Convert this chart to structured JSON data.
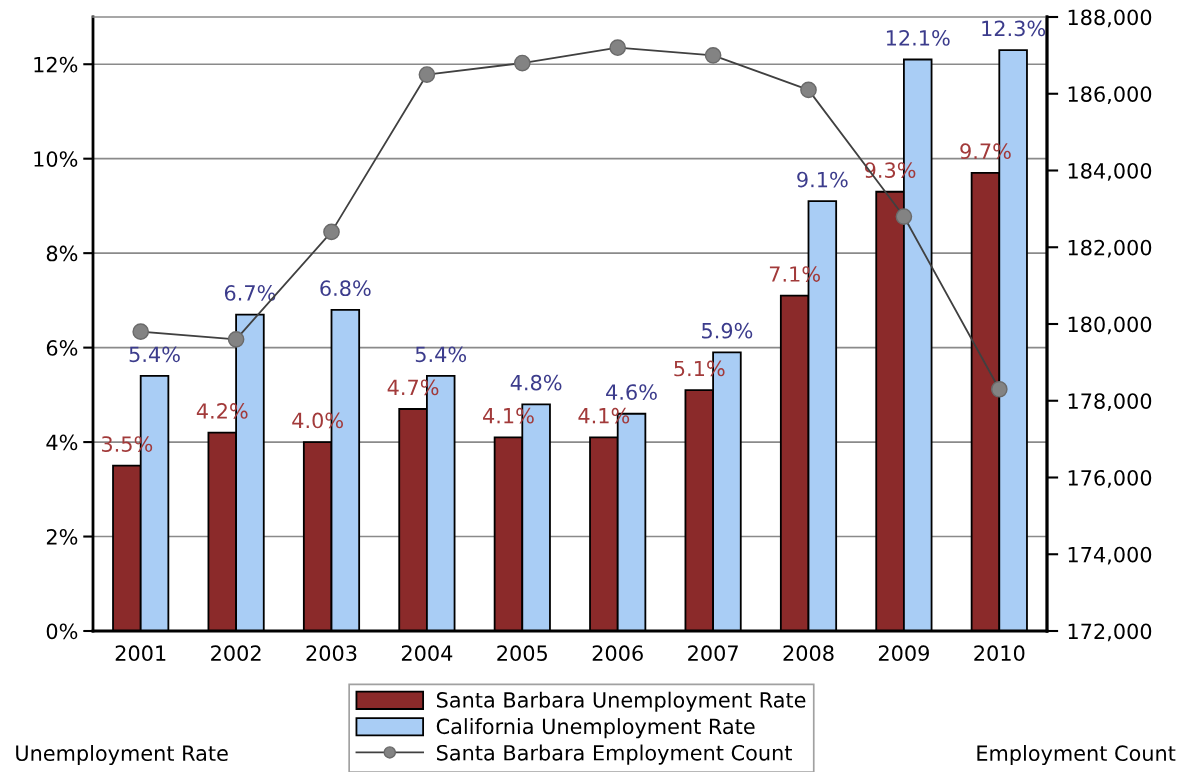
{
  "chart_data": {
    "type": "bar",
    "categories": [
      "2001",
      "2002",
      "2003",
      "2004",
      "2005",
      "2006",
      "2007",
      "2008",
      "2009",
      "2010"
    ],
    "series": [
      {
        "name": "Santa Barbara Unemployment Rate",
        "color": "#8b2a2a",
        "values": [
          3.5,
          4.2,
          4.0,
          4.7,
          4.1,
          4.1,
          5.1,
          7.1,
          9.3,
          9.7
        ],
        "value_labels": [
          "3.5%",
          "4.2%",
          "4.0%",
          "4.7%",
          "4.1%",
          "4.1%",
          "5.1%",
          "7.1%",
          "9.3%",
          "9.7%"
        ]
      },
      {
        "name": "California Unemployment Rate",
        "color": "#a9cdf5",
        "values": [
          5.4,
          6.7,
          6.8,
          5.4,
          4.8,
          4.6,
          5.9,
          9.1,
          12.1,
          12.3
        ],
        "value_labels": [
          "5.4%",
          "6.7%",
          "6.8%",
          "5.4%",
          "4.8%",
          "4.6%",
          "5.9%",
          "9.1%",
          "12.1%",
          "12.3%"
        ]
      },
      {
        "name": "Santa Barbara Employment Count",
        "type": "line",
        "axis": "y2",
        "color": "#404040",
        "values": [
          179800,
          179600,
          182400,
          186500,
          186800,
          187200,
          187000,
          186100,
          182800,
          178300
        ]
      }
    ],
    "ylim": [
      0,
      13
    ],
    "yticks": [
      {
        "value": 0,
        "label": "0%"
      },
      {
        "value": 2,
        "label": "2%"
      },
      {
        "value": 4,
        "label": "4%"
      },
      {
        "value": 6,
        "label": "6%"
      },
      {
        "value": 8,
        "label": "8%"
      },
      {
        "value": 10,
        "label": "10%"
      },
      {
        "value": 12,
        "label": "12%"
      }
    ],
    "y2lim": [
      172000,
      188000
    ],
    "y2ticks": [
      {
        "value": 172000,
        "label": "172,000"
      },
      {
        "value": 174000,
        "label": "174,000"
      },
      {
        "value": 176000,
        "label": "176,000"
      },
      {
        "value": 178000,
        "label": "178,000"
      },
      {
        "value": 180000,
        "label": "180,000"
      },
      {
        "value": 182000,
        "label": "182,000"
      },
      {
        "value": 184000,
        "label": "184,000"
      },
      {
        "value": 186000,
        "label": "186,000"
      },
      {
        "value": 188000,
        "label": "188,000"
      }
    ],
    "ylabel": "Unemployment Rate",
    "y2label": "Employment Count",
    "grid": "y",
    "legend": "bottom",
    "marker": "circle",
    "line_style": "solid"
  }
}
